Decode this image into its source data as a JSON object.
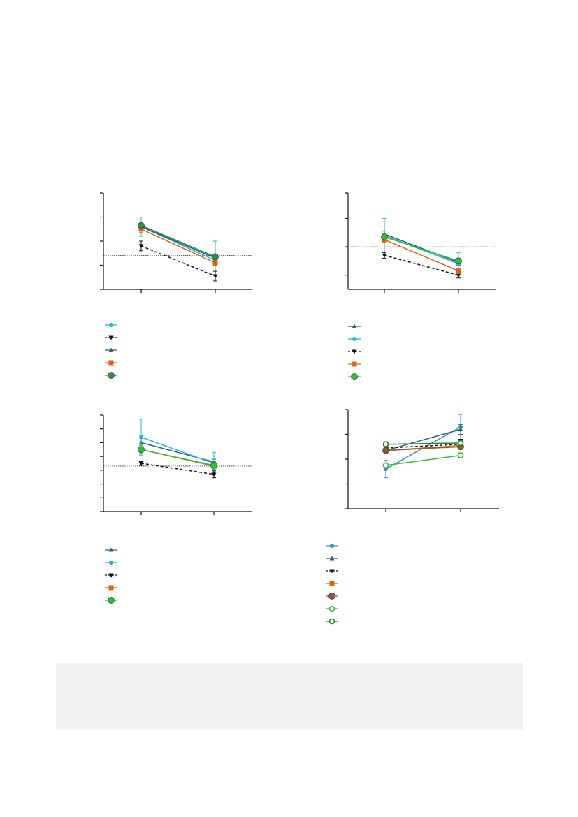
{
  "chart_data": [
    {
      "type": "line",
      "x": [
        "",
        ""
      ],
      "ylim": [
        0,
        4
      ],
      "reference_line": 1.4,
      "yticks": [
        0,
        1,
        2,
        3,
        4
      ],
      "grid": false,
      "legend_position": "bottom-left",
      "series": [
        {
          "values": [
            2.6,
            1.2
          ],
          "error": [
            0.4,
            0.8
          ],
          "color": "#22b2e6",
          "marker": "circle",
          "dash": false
        },
        {
          "values": [
            1.8,
            0.55
          ],
          "error": [
            0.2,
            0.2
          ],
          "color": "#111111",
          "marker": "triangle-down",
          "dash": true
        },
        {
          "values": [
            2.6,
            1.3
          ],
          "error": [
            0.1,
            0.1
          ],
          "color": "#2b5f86",
          "marker": "triangle-up",
          "dash": false
        },
        {
          "values": [
            2.5,
            1.1
          ],
          "error": [
            0.15,
            0.1
          ],
          "color": "#e0620e",
          "marker": "square",
          "dash": false
        },
        {
          "values": [
            2.65,
            1.35
          ],
          "error": [
            0.1,
            0.1
          ],
          "color": "#3a8a48",
          "marker": "circle-large",
          "dash": false
        }
      ]
    },
    {
      "type": "line",
      "x": [
        "",
        ""
      ],
      "ylim": [
        0,
        3.4
      ],
      "reference_line": 1.5,
      "yticks": [
        0.5,
        1.5,
        2.5,
        3.4
      ],
      "grid": false,
      "legend_position": "bottom-left",
      "series": [
        {
          "values": [
            1.95,
            0.95
          ],
          "error": [
            0.1,
            0.1
          ],
          "color": "#2b5f86",
          "marker": "triangle-up",
          "dash": false
        },
        {
          "values": [
            1.9,
            0.9
          ],
          "error": [
            0.6,
            0.4
          ],
          "color": "#22b2e6",
          "marker": "circle",
          "dash": false
        },
        {
          "values": [
            1.2,
            0.5
          ],
          "error": [
            0.1,
            0.1
          ],
          "color": "#111111",
          "marker": "triangle-down",
          "dash": true
        },
        {
          "values": [
            1.75,
            0.65
          ],
          "error": [
            0.1,
            0.1
          ],
          "color": "#e0620e",
          "marker": "square",
          "dash": false
        },
        {
          "values": [
            1.85,
            1.0
          ],
          "error": [
            0.1,
            0.1
          ],
          "color": "#27c42b",
          "marker": "circle-large",
          "dash": false
        }
      ]
    },
    {
      "type": "line",
      "x": [
        "",
        ""
      ],
      "ylim": [
        0,
        7
      ],
      "reference_line": 3.3,
      "yticks": [
        0,
        1,
        2,
        3,
        4,
        5,
        6,
        7
      ],
      "grid": false,
      "legend_position": "bottom-left",
      "series": [
        {
          "values": [
            5.0,
            3.6
          ],
          "error": [
            0.2,
            0.2
          ],
          "color": "#2b5f86",
          "marker": "triangle-up",
          "dash": false
        },
        {
          "values": [
            5.4,
            3.5
          ],
          "error": [
            1.3,
            0.8
          ],
          "color": "#22b2e6",
          "marker": "circle",
          "dash": false
        },
        {
          "values": [
            3.5,
            2.7
          ],
          "error": [
            0.15,
            0.25
          ],
          "color": "#111111",
          "marker": "triangle-down",
          "dash": true
        },
        {
          "values": [
            4.5,
            3.3
          ],
          "error": [
            0.3,
            0.3
          ],
          "color": "#e0620e",
          "marker": "square",
          "dash": false
        },
        {
          "values": [
            4.5,
            3.35
          ],
          "error": [
            0.3,
            0.3
          ],
          "color": "#27c42b",
          "marker": "circle-large",
          "dash": false
        }
      ]
    },
    {
      "type": "line",
      "x": [
        "",
        ""
      ],
      "ylim": [
        0,
        4
      ],
      "yticks": [
        0,
        1,
        2,
        3,
        4
      ],
      "grid": false,
      "legend_position": "bottom-left",
      "series": [
        {
          "values": [
            1.6,
            3.3
          ],
          "error": [
            0.35,
            0.5
          ],
          "color": "#3a8fbf",
          "marker": "circle",
          "dash": false
        },
        {
          "values": [
            2.35,
            3.2
          ],
          "error": [
            0.1,
            0.2
          ],
          "color": "#2b5f86",
          "marker": "triangle-up",
          "dash": false
        },
        {
          "values": [
            2.45,
            2.6
          ],
          "error": [
            0.15,
            0.2
          ],
          "color": "#111111",
          "marker": "triangle-down",
          "dash": true
        },
        {
          "values": [
            2.35,
            2.55
          ],
          "error": [
            0.1,
            0.1
          ],
          "color": "#e0620e",
          "marker": "square",
          "dash": false
        },
        {
          "values": [
            2.35,
            2.5
          ],
          "error": [
            0.1,
            0.1
          ],
          "color": "#8b5a3c",
          "marker": "circle-large",
          "dash": false
        },
        {
          "values": [
            1.75,
            2.15
          ],
          "error": [
            0.1,
            0.1
          ],
          "color": "#27c42b",
          "marker": "circle-open",
          "dash": false
        },
        {
          "values": [
            2.6,
            2.65
          ],
          "error": [
            0.1,
            0.1
          ],
          "color": "#1a8a1e",
          "marker": "circle-open",
          "dash": false
        }
      ]
    }
  ],
  "footer": {
    "text": ""
  }
}
